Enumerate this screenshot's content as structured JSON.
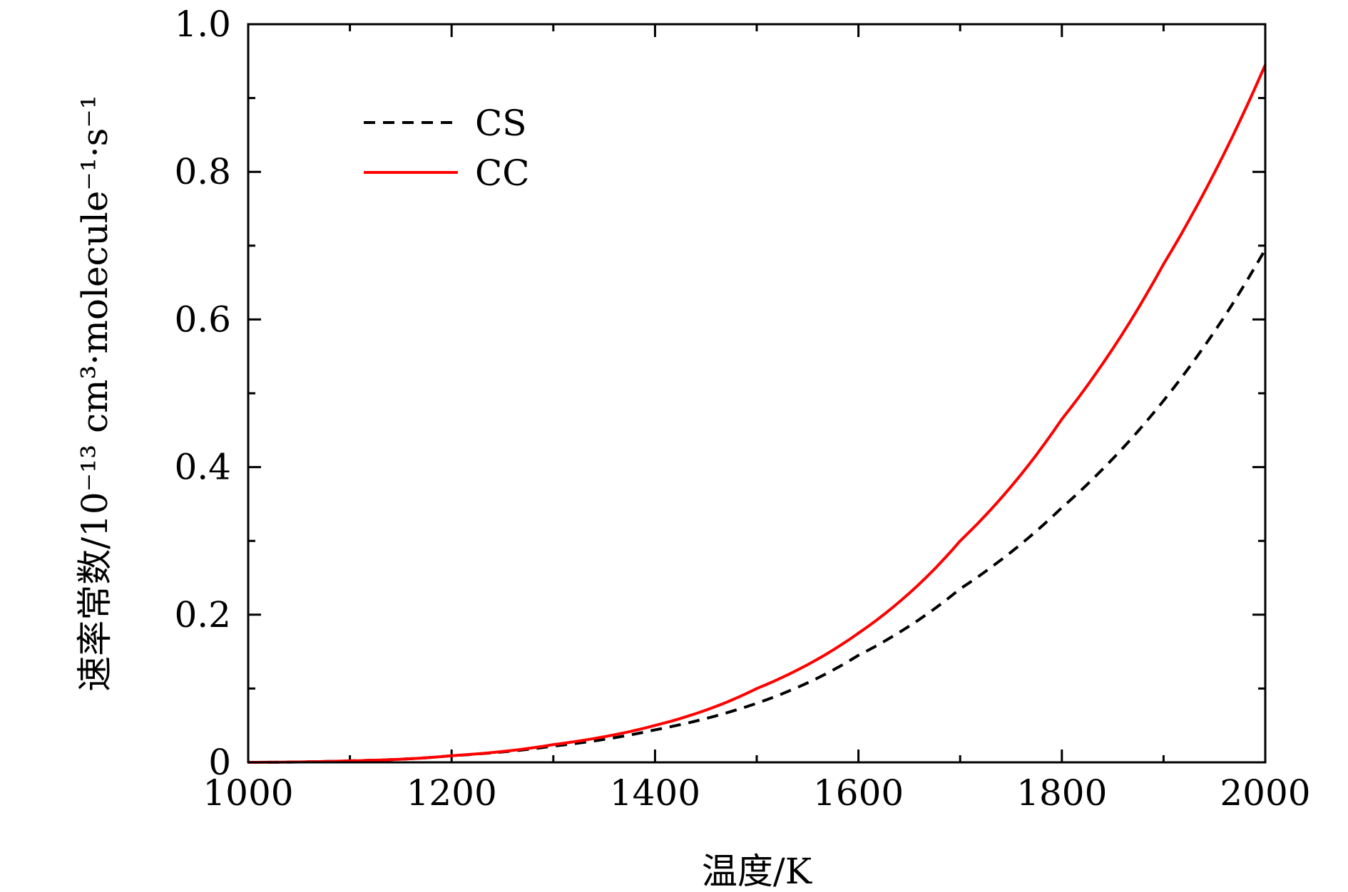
{
  "chart_data": {
    "type": "line",
    "title": "",
    "xlabel": "温度/K",
    "ylabel": "速率常数/10⁻¹³ cm³·molecule⁻¹·s⁻¹",
    "xlim": [
      1000,
      2000
    ],
    "ylim": [
      0,
      1.0
    ],
    "x_ticks": [
      1000,
      1200,
      1400,
      1600,
      1800,
      2000
    ],
    "x_tick_labels": [
      "1000",
      "1200",
      "1400",
      "1600",
      "1800",
      "2000"
    ],
    "y_ticks": [
      0,
      0.2,
      0.4,
      0.6,
      0.8,
      1.0
    ],
    "y_tick_labels": [
      "0",
      "0.2",
      "0.4",
      "0.6",
      "0.8",
      "1.0"
    ],
    "grid": false,
    "legend_position": "top-left",
    "series": [
      {
        "name": "CS",
        "color": "#000000",
        "style": "dashed",
        "x": [
          1000,
          1100,
          1200,
          1300,
          1400,
          1500,
          1600,
          1700,
          1800,
          1900,
          2000
        ],
        "y": [
          0.0,
          0.002,
          0.009,
          0.022,
          0.044,
          0.08,
          0.145,
          0.235,
          0.345,
          0.49,
          0.695
        ]
      },
      {
        "name": "CC",
        "color": "#ff0000",
        "style": "solid",
        "x": [
          1000,
          1100,
          1200,
          1300,
          1400,
          1500,
          1600,
          1700,
          1800,
          1900,
          2000
        ],
        "y": [
          0.0,
          0.002,
          0.009,
          0.024,
          0.05,
          0.1,
          0.175,
          0.3,
          0.465,
          0.675,
          0.945
        ]
      }
    ]
  }
}
